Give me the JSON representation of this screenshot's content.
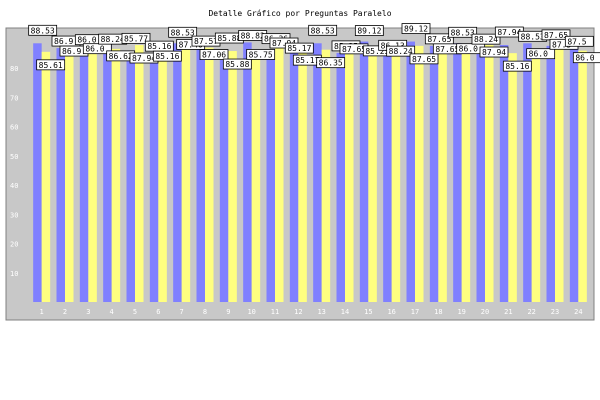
{
  "chart_data": {
    "type": "bar",
    "title": "Detalle Gráfico por Preguntas Paralelo",
    "xlabel": "",
    "ylabel": "",
    "categories": [
      "1",
      "2",
      "3",
      "4",
      "5",
      "6",
      "7",
      "8",
      "9",
      "10",
      "11",
      "12",
      "13",
      "14",
      "15",
      "16",
      "17",
      "18",
      "19",
      "20",
      "21",
      "22",
      "23",
      "24"
    ],
    "ylim": [
      0,
      90
    ],
    "yticks": [
      10,
      20,
      30,
      40,
      50,
      60,
      70,
      80
    ],
    "grid": false,
    "legend": "none",
    "series": [
      {
        "values": [
          88.53,
          86.9,
          86.0,
          88.24,
          85.77,
          85.16,
          88.53,
          87.57,
          85.88,
          88.82,
          86.36,
          85.17,
          88.53,
          85.25,
          89.12,
          86.13,
          89.12,
          87.65,
          88.53,
          88.24,
          87.94,
          88.53,
          87.65,
          87.5
        ],
        "color": "#8080ff"
      },
      {
        "values": [
          85.61,
          86.9,
          86.0,
          86.62,
          87.94,
          85.16,
          87.46,
          87.06,
          85.88,
          85.75,
          87.94,
          85.17,
          86.35,
          87.65,
          85.25,
          88.24,
          87.65,
          87.65,
          86.0,
          87.94,
          85.16,
          86.0,
          87.5,
          86.0
        ],
        "color": "#ffff80"
      }
    ],
    "colors": {
      "plot_bg": "#c8c8c8",
      "border": "#808080",
      "tick_text": "#ffffff"
    }
  }
}
